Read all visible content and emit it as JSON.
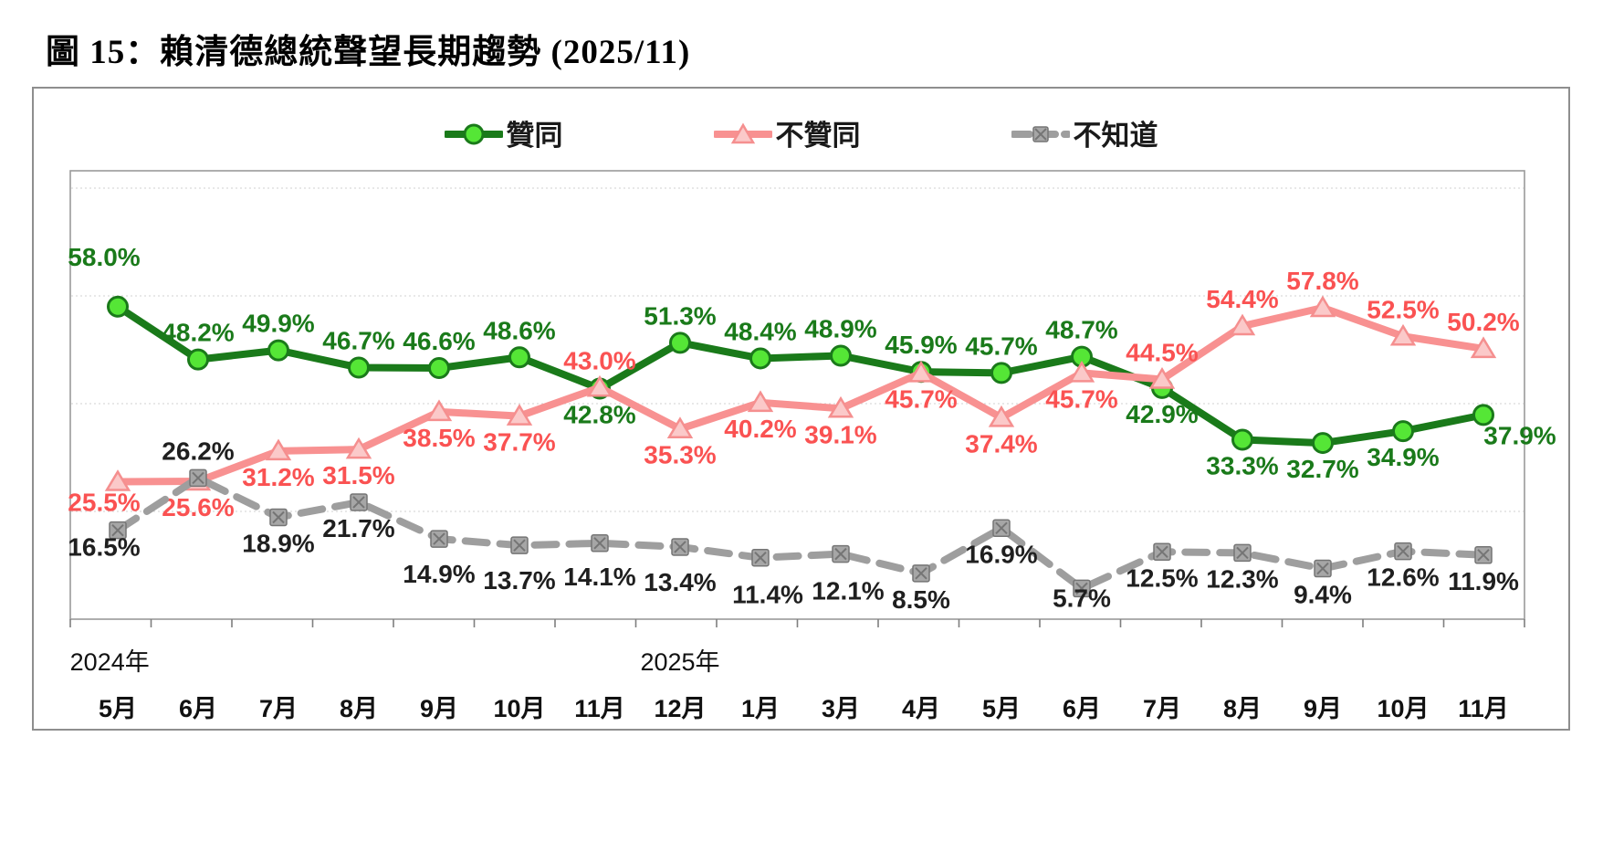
{
  "title": "圖 15：賴清德總統聲望長期趨勢 (2025/11)",
  "chart_data": {
    "type": "line",
    "title": "圖 15：賴清德總統聲望長期趨勢 (2025/11)",
    "categories": [
      "5月",
      "6月",
      "7月",
      "8月",
      "9月",
      "10月",
      "11月",
      "12月",
      "1月",
      "3月",
      "4月",
      "5月",
      "6月",
      "7月",
      "8月",
      "9月",
      "10月",
      "11月"
    ],
    "year_labels": [
      {
        "label": "2024年",
        "index": -0.1
      },
      {
        "label": "2025年",
        "index": 7.0
      }
    ],
    "ylim": [
      0,
      83
    ],
    "gridlines": [
      20,
      40,
      60,
      80
    ],
    "legend_position": "top-center",
    "grid": "horizontal-dotted",
    "series": [
      {
        "id": "approve",
        "name": "贊同",
        "marker": "circle",
        "line_color": "#1a7a1a",
        "marker_fill": "#55e636",
        "marker_stroke": "#1a7a1a",
        "label_color": "#1a7a1a",
        "dash": null,
        "values": [
          58.0,
          48.2,
          49.9,
          46.7,
          46.6,
          48.6,
          42.8,
          51.3,
          48.4,
          48.9,
          45.9,
          45.7,
          48.7,
          42.9,
          33.3,
          32.7,
          34.9,
          37.9
        ],
        "label_pos": [
          "a",
          "a",
          "a",
          "a",
          "a",
          "a",
          "b",
          "a",
          "a",
          "a",
          "a",
          "a",
          "a",
          "b",
          "b",
          "b",
          "b",
          "b"
        ],
        "label_offset_overrides": {
          "0": [
            -15,
            -25
          ],
          "17": [
            40,
            -6
          ]
        }
      },
      {
        "id": "disapprove",
        "name": "不贊同",
        "marker": "triangle",
        "line_color": "#f89191",
        "marker_fill": "#fbc9c9",
        "marker_stroke": "#f58f8f",
        "label_color": "#fa5252",
        "dash": null,
        "values": [
          25.5,
          25.6,
          31.2,
          31.5,
          38.5,
          37.7,
          43.0,
          35.3,
          40.2,
          39.1,
          45.7,
          37.4,
          45.7,
          44.5,
          54.4,
          57.8,
          52.5,
          50.2
        ],
        "label_pos": [
          "b",
          "b",
          "b",
          "b",
          "b",
          "b",
          "a",
          "b",
          "b",
          "b",
          "b",
          "b",
          "b",
          "a",
          "a",
          "a",
          "a",
          "a"
        ],
        "label_offset_overrides": {
          "0": [
            -15,
            -6
          ]
        }
      },
      {
        "id": "dontknow",
        "name": "不知道",
        "marker": "square-x",
        "line_color": "#9e9e9e",
        "marker_fill": "#a6a6a6",
        "marker_stroke": "#757575",
        "label_color": "#1f1f1f",
        "dash": "24 14",
        "values": [
          16.5,
          26.2,
          18.9,
          21.7,
          14.9,
          13.7,
          14.1,
          13.4,
          11.4,
          12.1,
          8.5,
          16.9,
          5.7,
          12.5,
          12.3,
          9.4,
          12.6,
          11.9
        ],
        "label_pos": [
          "b",
          "a",
          "b",
          "b",
          "b",
          "b",
          "b",
          "b",
          "b",
          "b",
          "b",
          "b",
          "b",
          "b",
          "b",
          "b",
          "b",
          "b"
        ],
        "label_offset_overrides": {
          "0": [
            -15,
            -10
          ],
          "4": [
            0,
            10
          ],
          "5": [
            0,
            10
          ],
          "6": [
            0,
            8
          ],
          "7": [
            0,
            10
          ],
          "8": [
            8,
            12
          ],
          "9": [
            8,
            12
          ],
          "12": [
            0,
            -18
          ]
        }
      }
    ]
  }
}
